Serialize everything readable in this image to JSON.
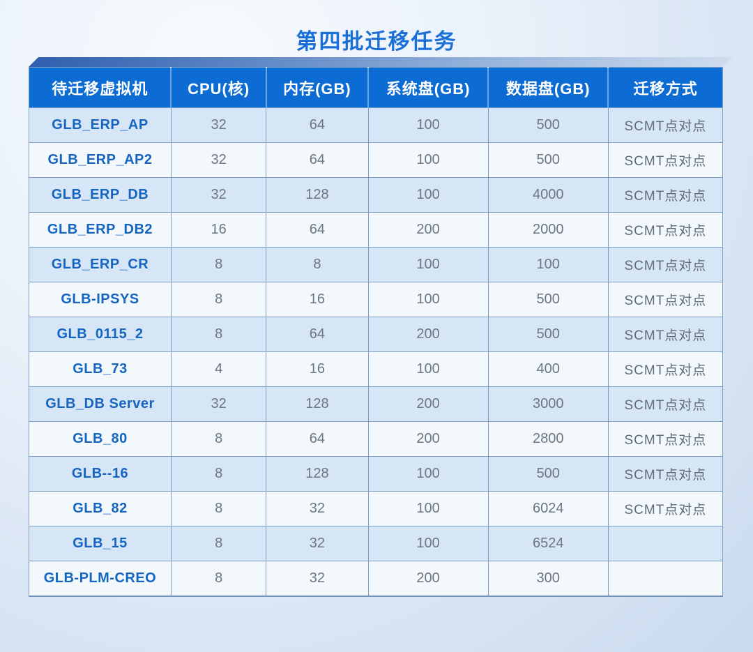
{
  "chart_data": {
    "type": "table",
    "title": "第四批迁移任务",
    "columns": [
      "待迁移虚拟机",
      "CPU(核)",
      "内存(GB)",
      "系统盘(GB)",
      "数据盘(GB)",
      "迁移方式"
    ],
    "rows": [
      [
        "GLB_ERP_AP",
        "32",
        "64",
        "100",
        "500",
        "SCMT点对点"
      ],
      [
        "GLB_ERP_AP2",
        "32",
        "64",
        "100",
        "500",
        "SCMT点对点"
      ],
      [
        "GLB_ERP_DB",
        "32",
        "128",
        "100",
        "4000",
        "SCMT点对点"
      ],
      [
        "GLB_ERP_DB2",
        "16",
        "64",
        "200",
        "2000",
        "SCMT点对点"
      ],
      [
        "GLB_ERP_CR",
        "8",
        "8",
        "100",
        "100",
        "SCMT点对点"
      ],
      [
        "GLB-IPSYS",
        "8",
        "16",
        "100",
        "500",
        "SCMT点对点"
      ],
      [
        "GLB_0115_2",
        "8",
        "64",
        "200",
        "500",
        "SCMT点对点"
      ],
      [
        "GLB_73",
        "4",
        "16",
        "100",
        "400",
        "SCMT点对点"
      ],
      [
        "GLB_DB Server",
        "32",
        "128",
        "200",
        "3000",
        "SCMT点对点"
      ],
      [
        "GLB_80",
        "8",
        "64",
        "200",
        "2800",
        "SCMT点对点"
      ],
      [
        "GLB--16",
        "8",
        "128",
        "100",
        "500",
        "SCMT点对点"
      ],
      [
        "GLB_82",
        "8",
        "32",
        "100",
        "6024",
        "SCMT点对点"
      ],
      [
        "GLB_15",
        "8",
        "32",
        "100",
        "6524",
        ""
      ],
      [
        "GLB-PLM-CREO",
        "8",
        "32",
        "200",
        "300",
        ""
      ]
    ],
    "layout": {
      "grid": true,
      "header_position": "top"
    }
  },
  "colors": {
    "title": "#1a70d6",
    "header_bg": "#0d6cd4",
    "header_text": "#ffffff",
    "row_odd": "#d7e6f6",
    "row_even": "#f3f8fd",
    "name_text": "#1565c0",
    "value_text": "#6b7682",
    "border": "#7d9cc2",
    "lid_dark": "#2f5fae",
    "lid_light": "#cfdcee",
    "page_bg_inner": "#f8fbfe",
    "page_bg_outer": "#c9d9ee"
  }
}
